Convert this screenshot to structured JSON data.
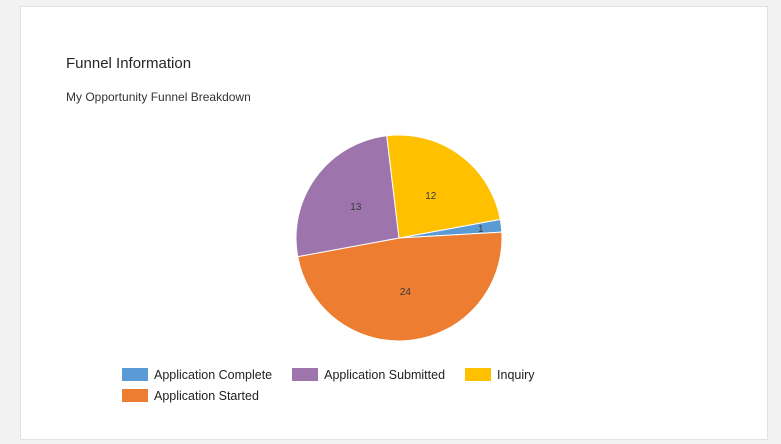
{
  "card": {
    "title": "Funnel Information",
    "subtitle": "My Opportunity Funnel Breakdown"
  },
  "chart_data": {
    "type": "pie",
    "series": [
      {
        "name": "Application Complete",
        "value": 1,
        "color": "#5B9BD5"
      },
      {
        "name": "Application Started",
        "value": 24,
        "color": "#ED7D31"
      },
      {
        "name": "Application Submitted",
        "value": 13,
        "color": "#9E74AD"
      },
      {
        "name": "Inquiry",
        "value": 12,
        "color": "#FFC000"
      }
    ],
    "data_labels": [
      "1",
      "24",
      "13",
      "12"
    ],
    "legend_position": "bottom",
    "legend_order": [
      "Application Complete",
      "Application Submitted",
      "Inquiry",
      "Application Started"
    ]
  }
}
